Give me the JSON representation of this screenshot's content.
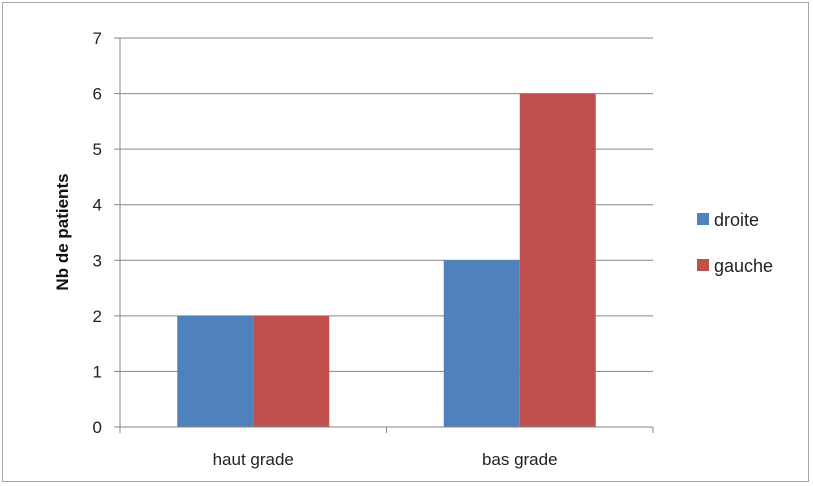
{
  "chart_data": {
    "type": "bar",
    "title": "",
    "xlabel": "",
    "ylabel": "Nb de patients",
    "categories": [
      "haut grade",
      "bas grade"
    ],
    "series": [
      {
        "name": "droite",
        "values": [
          2,
          3
        ],
        "color": "#4f81bd"
      },
      {
        "name": "gauche",
        "values": [
          2,
          6
        ],
        "color": "#c0504d"
      }
    ],
    "ylim": [
      0,
      7
    ],
    "yticks": [
      0,
      1,
      2,
      3,
      4,
      5,
      6,
      7
    ],
    "grid": true,
    "legend_position": "right"
  }
}
